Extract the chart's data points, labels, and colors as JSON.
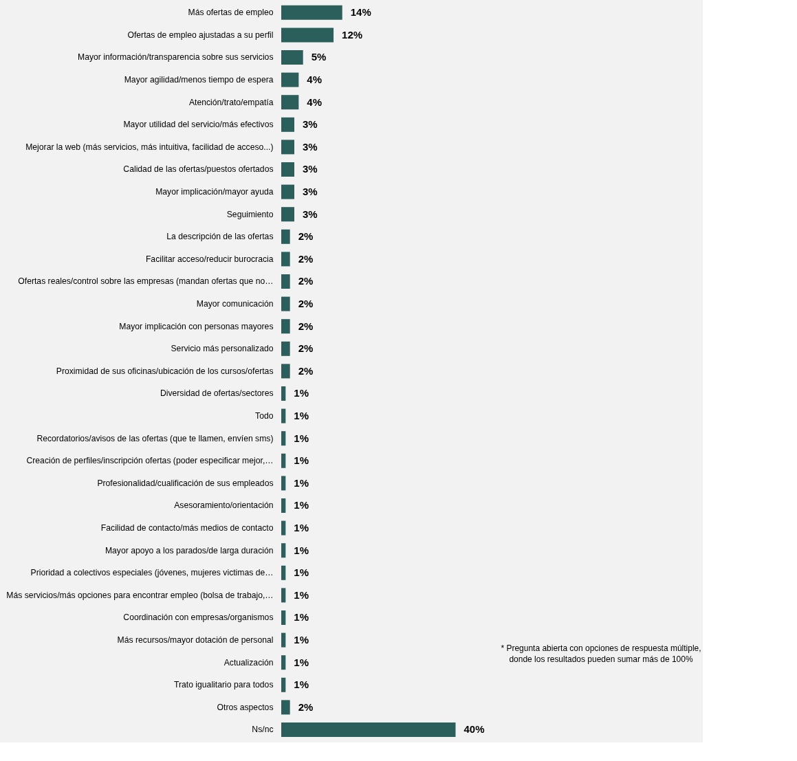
{
  "chart_data": {
    "type": "bar",
    "orientation": "horizontal",
    "data_labels": true,
    "grid": false,
    "tick_labels": "y",
    "categories": [
      "Más ofertas de empleo",
      "Ofertas de empleo ajustadas a su perfil",
      "Mayor información/transparencia sobre sus servicios",
      "Mayor agilidad/menos tiempo de espera",
      "Atención/trato/empatía",
      "Mayor utilidad del servicio/más efectivos",
      "Mejorar la web (más servicios, más intuitiva, facilidad de acceso...)",
      "Calidad de las ofertas/puestos ofertados",
      "Mayor implicación/mayor ayuda",
      "Seguimiento",
      "La descripción de las ofertas",
      "Facilitar acceso/reducir burocracia",
      "Ofertas reales/control sobre las empresas (mandan ofertas que no…",
      "Mayor comunicación",
      "Mayor implicación con personas mayores",
      "Servicio más personalizado",
      "Proximidad de sus oficinas/ubicación de los cursos/ofertas",
      "Diversidad de ofertas/sectores",
      "Todo",
      "Recordatorios/avisos de las ofertas (que te llamen, envíen sms)",
      "Creación de perfiles/inscripción ofertas (poder especificar mejor,…",
      "Profesionalidad/cualificación de sus empleados",
      "Asesoramiento/orientación",
      "Facilidad de contacto/más medios de contacto",
      "Mayor apoyo a los parados/de larga duración",
      "Prioridad a colectivos especiales (jóvenes, mujeres victimas de…",
      "Más servicios/más opciones para encontrar empleo (bolsa de trabajo,…",
      "Coordinación con empresas/organismos",
      "Más recursos/mayor dotación de personal",
      "Actualización",
      "Trato igualitario para todos",
      "Otros aspectos",
      "Ns/nc"
    ],
    "values": [
      14,
      12,
      5,
      4,
      4,
      3,
      3,
      3,
      3,
      3,
      2,
      2,
      2,
      2,
      2,
      2,
      2,
      1,
      1,
      1,
      1,
      1,
      1,
      1,
      1,
      1,
      1,
      1,
      1,
      1,
      1,
      2,
      40
    ],
    "value_labels": [
      "14%",
      "12%",
      "5%",
      "4%",
      "4%",
      "3%",
      "3%",
      "3%",
      "3%",
      "3%",
      "2%",
      "2%",
      "2%",
      "2%",
      "2%",
      "2%",
      "2%",
      "1%",
      "1%",
      "1%",
      "1%",
      "1%",
      "1%",
      "1%",
      "1%",
      "1%",
      "1%",
      "1%",
      "1%",
      "1%",
      "1%",
      "2%",
      "40%"
    ],
    "color": "#2b5f5b",
    "annotations": [
      "* Pregunta abierta con opciones de respuesta múltiple,\ndonde los resultados pueden sumar más de 100%"
    ]
  }
}
